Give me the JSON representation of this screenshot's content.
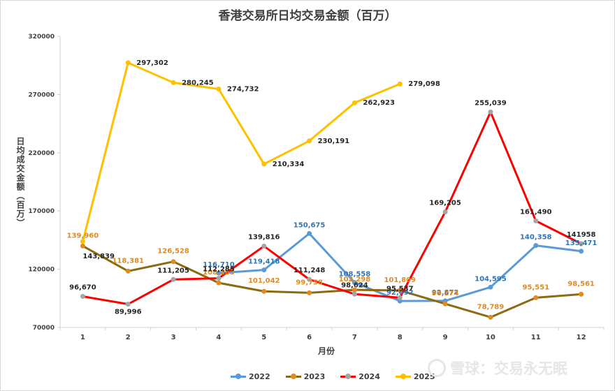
{
  "title": "香港交易所日均交易金额（百万）",
  "legend_marker": "",
  "watermark": {
    "brand": "雪球：交易永无眠"
  },
  "chart_data": {
    "type": "line",
    "title": "香港交易所日均交易金额（百万）",
    "xlabel": "月份",
    "ylabel": "日均成交金额（百万）",
    "ylim": [
      70000,
      320000
    ],
    "yticks": [
      70000,
      120000,
      170000,
      220000,
      270000,
      320000
    ],
    "grid": false,
    "legend_position": "bottom",
    "categories": [
      "1",
      "2",
      "3",
      "4",
      "5",
      "6",
      "7",
      "8",
      "9",
      "10",
      "11",
      "12"
    ],
    "series": [
      {
        "name": "2022",
        "color": "#5b9bd5",
        "values": [
          null,
          null,
          null,
          116710,
          119418,
          150675,
          108558,
          92692,
          92872,
          104595,
          140358,
          135471
        ],
        "labels": [
          "",
          "",
          "",
          "116,710",
          "119,418",
          "150,675",
          "108,558",
          "92,692",
          "92,872",
          "104,595",
          "140,358",
          "135,471"
        ]
      },
      {
        "name": "2023",
        "color": "#8c6a12",
        "values": [
          139960,
          118381,
          126528,
          108283,
          101042,
          99758,
          102298,
          101809,
          90274,
          78789,
          95551,
          98561
        ],
        "labels": [
          "139,960",
          "118,381",
          "126,528",
          "108,283",
          "101,042",
          "99,758",
          "102,298",
          "101,809",
          "90,274",
          "78,789",
          "95,551",
          "98,561"
        ]
      },
      {
        "name": "2024",
        "color": "#ff0000",
        "marker_color": "#a5a5a5",
        "values": [
          96670,
          89996,
          111205,
          112285,
          139816,
          111248,
          98624,
          95537,
          169205,
          255039,
          161490,
          141958
        ],
        "labels": [
          "96,670",
          "89,996",
          "111,205",
          "112,285",
          "139,816",
          "111,248",
          "98,624",
          "95,537",
          "169,205",
          "255,039",
          "161,490",
          "141958"
        ]
      },
      {
        "name": "2025",
        "color": "#ffc000",
        "values": [
          143839,
          297302,
          280245,
          274732,
          210334,
          230191,
          262923,
          279098,
          null,
          null,
          null,
          null
        ],
        "labels": [
          "143,839",
          "297,302",
          "280,245",
          "274,732",
          "210,334",
          "230,191",
          "262,923",
          "279,098",
          "",
          "",
          "",
          ""
        ]
      }
    ]
  }
}
